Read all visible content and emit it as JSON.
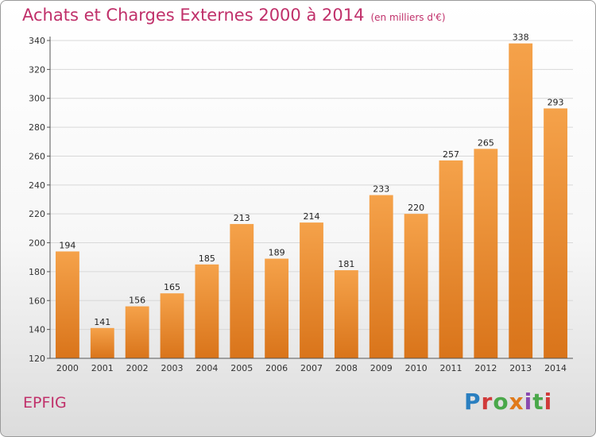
{
  "header": {
    "title": "Achats et Charges Externes 2000 à 2014",
    "unit": "(en milliers d'€)"
  },
  "footer": {
    "town": "EPFIG",
    "brand": "Proxiti"
  },
  "colors": {
    "bar_top": "#f5a24a",
    "bar_bottom": "#d9741a",
    "accent": "#c0306a"
  },
  "chart_data": {
    "type": "bar",
    "title": "Achats et Charges Externes 2000 à 2014",
    "subtitle": "(en milliers d'€)",
    "xlabel": "",
    "ylabel": "",
    "categories": [
      "2000",
      "2001",
      "2002",
      "2003",
      "2004",
      "2005",
      "2006",
      "2007",
      "2008",
      "2009",
      "2010",
      "2011",
      "2012",
      "2013",
      "2014"
    ],
    "values": [
      194,
      141,
      156,
      165,
      185,
      213,
      189,
      214,
      181,
      233,
      220,
      257,
      265,
      338,
      293
    ],
    "ylim": [
      120,
      340
    ],
    "yticks": [
      120,
      140,
      160,
      180,
      200,
      220,
      240,
      260,
      280,
      300,
      320,
      340
    ],
    "grid": true,
    "legend": "none"
  }
}
